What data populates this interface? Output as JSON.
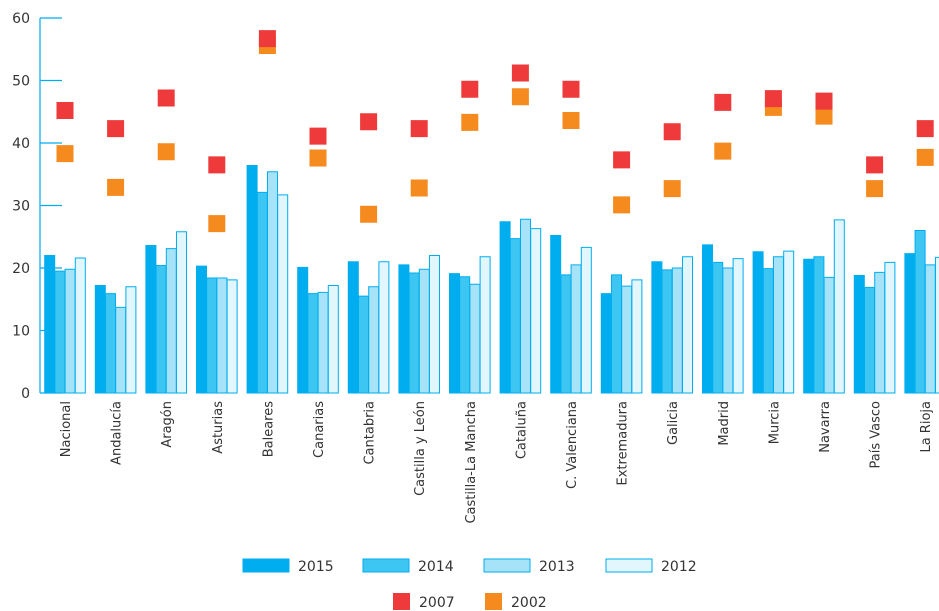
{
  "chart_data": {
    "type": "bar",
    "title": "",
    "xlabel": "",
    "ylabel": "",
    "ylim": [
      0,
      60
    ],
    "yticks": [
      0,
      10,
      20,
      30,
      40,
      50,
      60
    ],
    "grid": false,
    "legend_position": "bottom",
    "categories": [
      "Nacional",
      "Andalucía",
      "Aragón",
      "Asturias",
      "Baleares",
      "Canarias",
      "Cantabria",
      "Castilla y León",
      "Castilla-La Mancha",
      "Cataluña",
      "C. Valenciana",
      "Extremadura",
      "Galicia",
      "Madrid",
      "Murcia",
      "Navarra",
      "País Vasco",
      "La Rioja"
    ],
    "series": [
      {
        "name": "2015",
        "kind": "bar",
        "color": "#00aeef",
        "values": [
          22.0,
          17.2,
          23.6,
          20.3,
          36.4,
          20.1,
          21.0,
          20.5,
          19.1,
          27.4,
          25.2,
          15.9,
          21.0,
          23.7,
          22.6,
          21.4,
          18.8,
          22.3
        ]
      },
      {
        "name": "2014",
        "kind": "bar",
        "color": "#3dc6f2",
        "values": [
          19.5,
          15.9,
          20.4,
          18.4,
          32.1,
          15.9,
          15.5,
          19.2,
          18.6,
          24.7,
          18.9,
          18.9,
          19.7,
          20.9,
          19.9,
          21.8,
          16.9,
          26.0
        ]
      },
      {
        "name": "2013",
        "kind": "bar",
        "color": "#a6e3f8",
        "values": [
          19.8,
          13.7,
          23.1,
          18.4,
          35.4,
          16.1,
          17.0,
          19.8,
          17.4,
          27.8,
          20.5,
          17.1,
          20.0,
          20.0,
          21.8,
          18.5,
          19.3,
          20.5
        ]
      },
      {
        "name": "2012",
        "kind": "bar",
        "color": "#e2f6fd",
        "values": [
          21.6,
          17.0,
          25.8,
          18.1,
          31.7,
          17.2,
          21.0,
          22.0,
          21.8,
          26.3,
          23.3,
          18.1,
          21.8,
          21.5,
          22.7,
          27.7,
          20.9,
          21.7
        ]
      },
      {
        "name": "2007",
        "kind": "point",
        "color": "#ee3a3a",
        "values": [
          45.2,
          42.3,
          47.2,
          36.5,
          56.7,
          41.1,
          43.4,
          42.3,
          48.6,
          51.2,
          48.6,
          37.3,
          41.8,
          46.5,
          47.1,
          46.7,
          36.5,
          42.3
        ]
      },
      {
        "name": "2002",
        "kind": "point",
        "color": "#f58a1f",
        "values": [
          38.3,
          32.9,
          38.6,
          27.1,
          55.6,
          37.6,
          28.6,
          32.8,
          43.3,
          47.4,
          43.6,
          30.1,
          32.7,
          38.7,
          45.7,
          44.3,
          32.7,
          37.7
        ]
      }
    ]
  }
}
